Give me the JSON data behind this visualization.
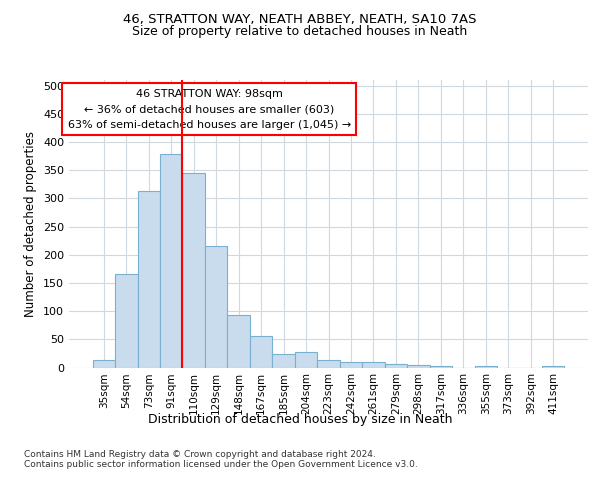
{
  "title_line1": "46, STRATTON WAY, NEATH ABBEY, NEATH, SA10 7AS",
  "title_line2": "Size of property relative to detached houses in Neath",
  "xlabel": "Distribution of detached houses by size in Neath",
  "ylabel": "Number of detached properties",
  "categories": [
    "35sqm",
    "54sqm",
    "73sqm",
    "91sqm",
    "110sqm",
    "129sqm",
    "148sqm",
    "167sqm",
    "185sqm",
    "204sqm",
    "223sqm",
    "242sqm",
    "261sqm",
    "279sqm",
    "298sqm",
    "317sqm",
    "336sqm",
    "355sqm",
    "373sqm",
    "392sqm",
    "411sqm"
  ],
  "values": [
    13,
    165,
    313,
    378,
    345,
    215,
    93,
    55,
    24,
    28,
    14,
    10,
    9,
    7,
    5,
    3,
    0,
    2,
    0,
    0,
    2
  ],
  "bar_color": "#c9dced",
  "bar_edge_color": "#7ab0cf",
  "vline_x": 3.5,
  "vline_color": "red",
  "annotation_line1": "46 STRATTON WAY: 98sqm",
  "annotation_line2": "← 36% of detached houses are smaller (603)",
  "annotation_line3": "63% of semi-detached houses are larger (1,045) →",
  "annotation_box_color": "white",
  "annotation_box_edge_color": "red",
  "ylim": [
    0,
    510
  ],
  "yticks": [
    0,
    50,
    100,
    150,
    200,
    250,
    300,
    350,
    400,
    450,
    500
  ],
  "footer": "Contains HM Land Registry data © Crown copyright and database right 2024.\nContains public sector information licensed under the Open Government Licence v3.0.",
  "background_color": "white",
  "grid_color": "#d0d8e0"
}
